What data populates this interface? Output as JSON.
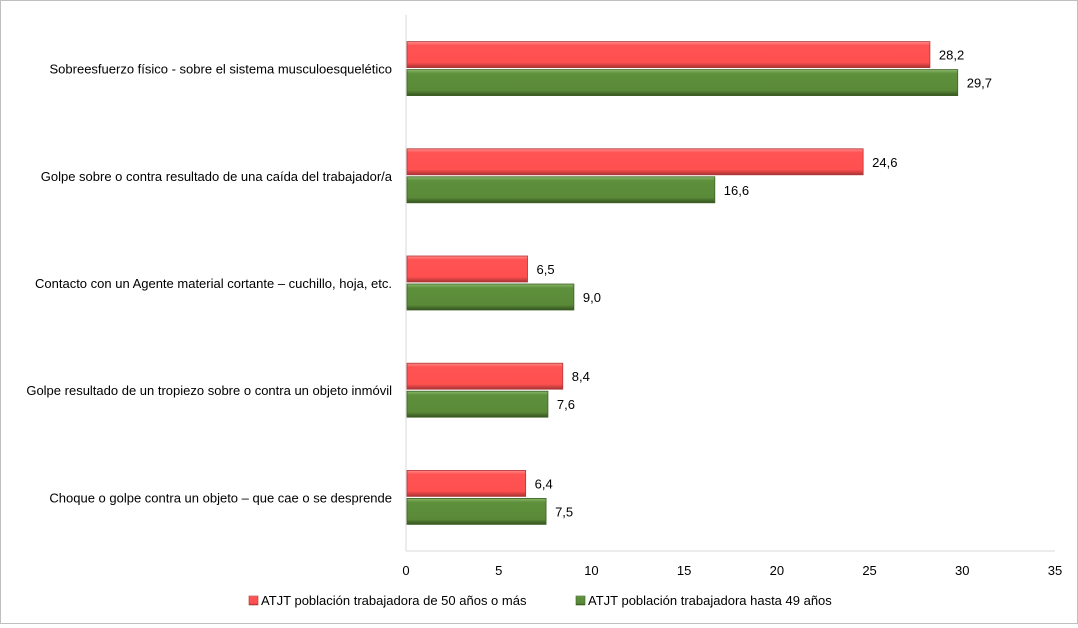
{
  "chart_data": {
    "type": "bar",
    "orientation": "horizontal",
    "categories": [
      "Sobreesfuerzo físico - sobre el sistema musculoesquelético",
      "Golpe sobre o contra resultado de una caída del trabajador/a",
      "Contacto con un Agente material cortante –  cuchillo, hoja, etc.",
      "Golpe resultado de un tropiezo sobre o contra un objeto inmóvil",
      "Choque o golpe contra un objeto – que cae o se desprende"
    ],
    "series": [
      {
        "name": "ATJT población trabajadora de  50 años o más",
        "color": "#ff5050",
        "values": [
          28.2,
          24.6,
          6.5,
          8.4,
          6.4
        ],
        "labels": [
          "28,2",
          "24,6",
          "6,5",
          "8,4",
          "6,4"
        ]
      },
      {
        "name": "ATJT población trabajadora hasta 49 años",
        "color": "#5a8a38",
        "values": [
          29.7,
          16.6,
          9.0,
          7.6,
          7.5
        ],
        "labels": [
          "29,7",
          "16,6",
          "9,0",
          "7,6",
          "7,5"
        ]
      }
    ],
    "xlim": [
      0,
      35
    ],
    "xticks": [
      "0",
      "5",
      "10",
      "15",
      "20",
      "25",
      "30",
      "35"
    ],
    "grid": false,
    "legend": "bottom",
    "title": "",
    "xlabel": "",
    "ylabel": ""
  }
}
